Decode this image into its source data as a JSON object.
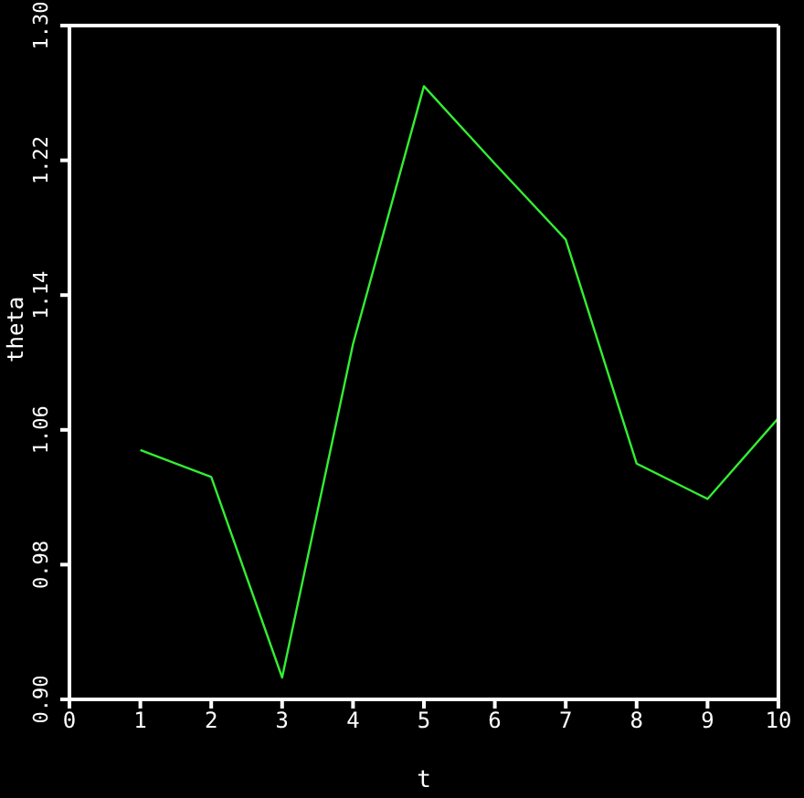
{
  "chart_data": {
    "type": "line",
    "xlabel": "t",
    "ylabel": "theta",
    "x": [
      1,
      2,
      3,
      4,
      5,
      6,
      7,
      8,
      9,
      10
    ],
    "series": [
      {
        "color": "#33ee33",
        "values": [
          1.048,
          1.032,
          0.913,
          1.111,
          1.264,
          1.218,
          1.173,
          1.04,
          1.019,
          1.067
        ]
      }
    ],
    "xlim": [
      0,
      10
    ],
    "xticks": [
      0,
      1,
      2,
      3,
      4,
      5,
      6,
      7,
      8,
      9,
      10
    ],
    "ylim": [
      0.9,
      1.3
    ],
    "yticks": [
      {
        "value": 0.9,
        "label": "0.90"
      },
      {
        "value": 0.98,
        "label": "0.98"
      },
      {
        "value": 1.06,
        "label": "1.06"
      },
      {
        "value": 1.14,
        "label": "1.14"
      },
      {
        "value": 1.22,
        "label": "1.22"
      },
      {
        "value": 1.3,
        "label": "1.30"
      }
    ],
    "grid": false,
    "legend": false,
    "marker": "none",
    "line_style": "solid"
  }
}
